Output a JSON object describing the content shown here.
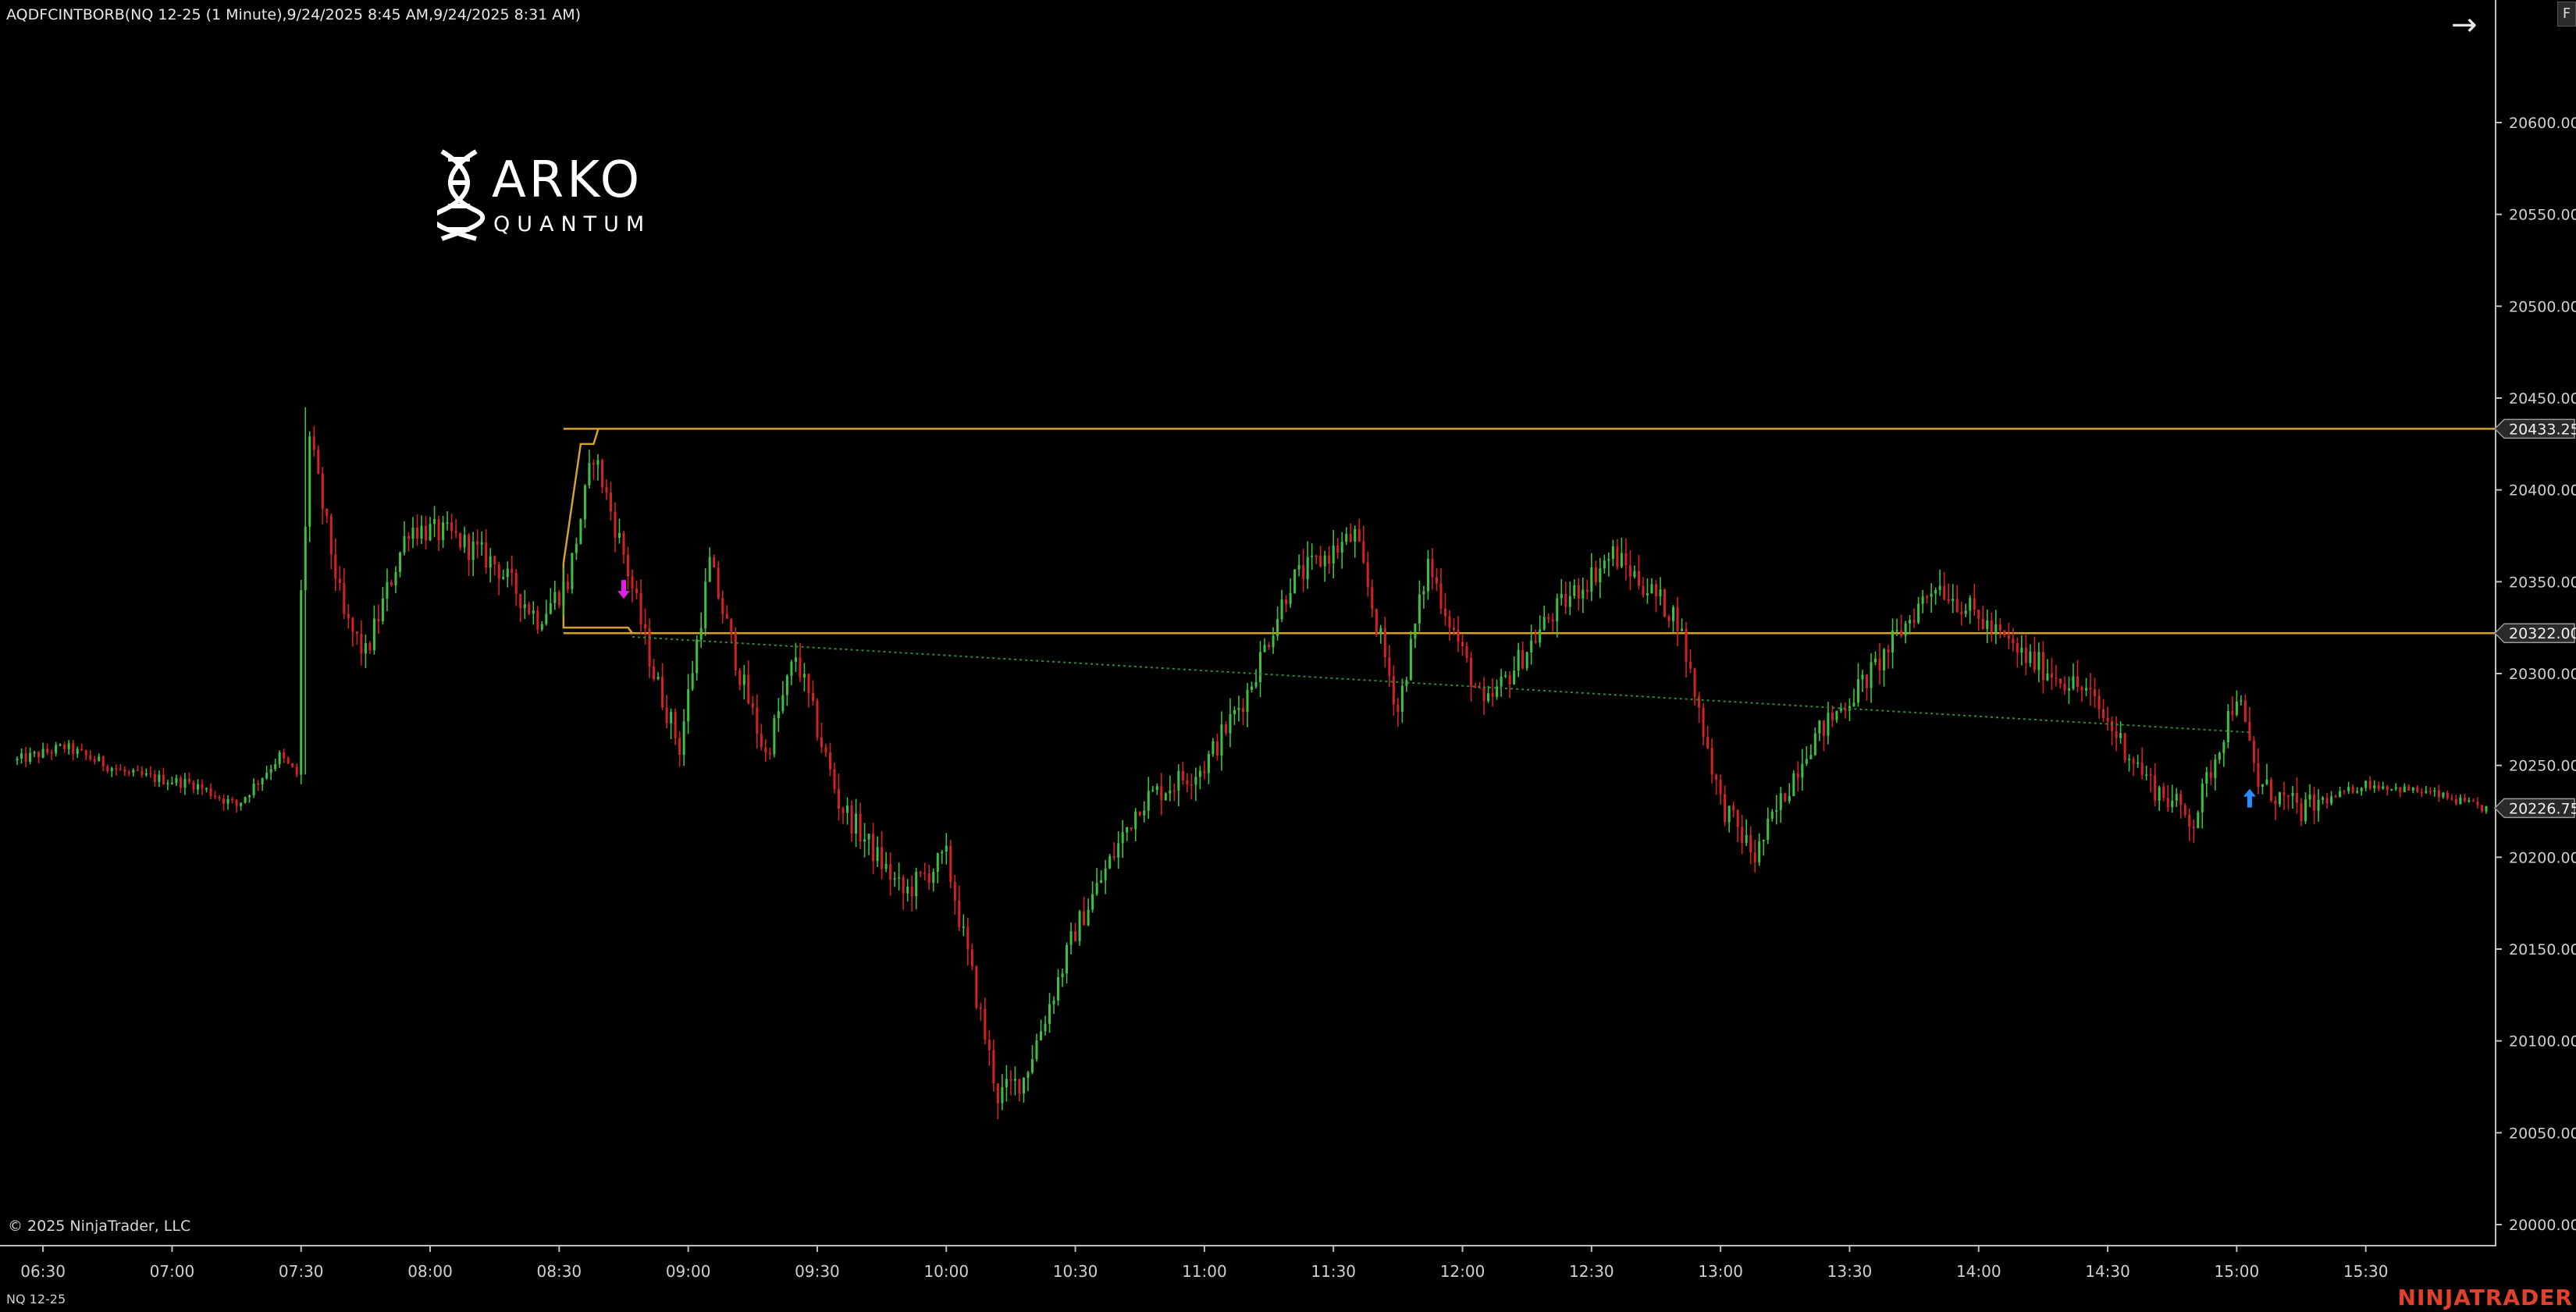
{
  "window": {
    "title": "AQDFCINTBORB(NQ 12-25 (1 Minute),9/24/2025 8:45 AM,9/24/2025 8:31 AM)",
    "f_button_label": "F",
    "collapse_icon": "arrow-right-icon",
    "copyright": "© 2025 NinjaTrader, LLC",
    "instrument": "NQ 12-25",
    "brand": "NINJATRADER",
    "brand_color": "#e0412d"
  },
  "logo": {
    "name": "ARKO",
    "tagline": "QUANTUM",
    "icon": "dna-helix-icon"
  },
  "chart_data": {
    "type": "candlestick",
    "instrument": "NQ 12-25",
    "interval": "1 Minute",
    "title": "AQDFCINTBORB(NQ 12-25 (1 Minute),9/24/2025 8:45 AM,9/24/2025 8:31 AM)",
    "x_ticks": [
      "06:30",
      "07:00",
      "07:30",
      "08:00",
      "08:30",
      "09:00",
      "09:30",
      "10:00",
      "10:30",
      "11:00",
      "11:30",
      "12:00",
      "12:30",
      "13:00",
      "13:30",
      "14:00",
      "14:30",
      "15:00",
      "15:30"
    ],
    "y_ticks": [
      "20600.00",
      "20550.00",
      "20500.00",
      "20450.00",
      "20400.00",
      "20350.00",
      "20300.00",
      "20250.00",
      "20200.00",
      "20150.00",
      "20100.00",
      "20050.00",
      "20000.00"
    ],
    "ylim": [
      20000,
      20600
    ],
    "x_range": [
      "06:20",
      "16:00"
    ],
    "grid": false,
    "up_color": "#3fbf3f",
    "down_color": "#d22222",
    "price_path": [
      {
        "t": "06:20",
        "p": 20250
      },
      {
        "t": "06:35",
        "p": 20260
      },
      {
        "t": "06:50",
        "p": 20245
      },
      {
        "t": "07:05",
        "p": 20240
      },
      {
        "t": "07:15",
        "p": 20228
      },
      {
        "t": "07:25",
        "p": 20255
      },
      {
        "t": "07:29",
        "p": 20245
      },
      {
        "t": "07:31",
        "p": 20440
      },
      {
        "t": "07:40",
        "p": 20330
      },
      {
        "t": "07:45",
        "p": 20310
      },
      {
        "t": "07:55",
        "p": 20380
      },
      {
        "t": "08:05",
        "p": 20375
      },
      {
        "t": "08:15",
        "p": 20360
      },
      {
        "t": "08:25",
        "p": 20330
      },
      {
        "t": "08:32",
        "p": 20350
      },
      {
        "t": "08:38",
        "p": 20420
      },
      {
        "t": "08:45",
        "p": 20365
      },
      {
        "t": "08:52",
        "p": 20300
      },
      {
        "t": "08:58",
        "p": 20260
      },
      {
        "t": "09:05",
        "p": 20360
      },
      {
        "t": "09:12",
        "p": 20300
      },
      {
        "t": "09:18",
        "p": 20255
      },
      {
        "t": "09:25",
        "p": 20310
      },
      {
        "t": "09:35",
        "p": 20230
      },
      {
        "t": "09:50",
        "p": 20180
      },
      {
        "t": "10:00",
        "p": 20200
      },
      {
        "t": "10:12",
        "p": 20070
      },
      {
        "t": "10:18",
        "p": 20080
      },
      {
        "t": "10:30",
        "p": 20160
      },
      {
        "t": "10:45",
        "p": 20230
      },
      {
        "t": "11:00",
        "p": 20250
      },
      {
        "t": "11:10",
        "p": 20290
      },
      {
        "t": "11:20",
        "p": 20350
      },
      {
        "t": "11:35",
        "p": 20375
      },
      {
        "t": "11:45",
        "p": 20280
      },
      {
        "t": "11:52",
        "p": 20360
      },
      {
        "t": "12:05",
        "p": 20280
      },
      {
        "t": "12:20",
        "p": 20330
      },
      {
        "t": "12:35",
        "p": 20365
      },
      {
        "t": "12:50",
        "p": 20330
      },
      {
        "t": "13:00",
        "p": 20230
      },
      {
        "t": "13:08",
        "p": 20200
      },
      {
        "t": "13:20",
        "p": 20260
      },
      {
        "t": "13:35",
        "p": 20300
      },
      {
        "t": "13:50",
        "p": 20350
      },
      {
        "t": "14:00",
        "p": 20330
      },
      {
        "t": "14:10",
        "p": 20310
      },
      {
        "t": "14:25",
        "p": 20290
      },
      {
        "t": "14:40",
        "p": 20240
      },
      {
        "t": "14:50",
        "p": 20220
      },
      {
        "t": "15:00",
        "p": 20290
      },
      {
        "t": "15:05",
        "p": 20240
      },
      {
        "t": "15:15",
        "p": 20225
      },
      {
        "t": "15:30",
        "p": 20240
      },
      {
        "t": "15:45",
        "p": 20235
      },
      {
        "t": "15:57",
        "p": 20226.75
      }
    ],
    "levels": [
      {
        "name": "range-high",
        "price": 20433.25,
        "label": "20433.25",
        "color": "#d4a030",
        "from": "08:31"
      },
      {
        "name": "range-low",
        "price": 20322.0,
        "label": "20322.00",
        "color": "#d4a030",
        "from": "08:31"
      },
      {
        "name": "last-price",
        "price": 20226.75,
        "label": "20226.75",
        "color": "#c8c8c8",
        "from": null
      }
    ],
    "trendline": {
      "color": "#2e8b2e",
      "from": {
        "t": "08:47",
        "p": 20320
      },
      "to": {
        "t": "15:03",
        "p": 20268
      }
    },
    "markers": [
      {
        "type": "short-arrow",
        "t": "08:45",
        "p": 20345,
        "color": "#e020e0"
      },
      {
        "type": "long-arrow",
        "t": "15:03",
        "p": 20233,
        "color": "#2a8cff"
      }
    ]
  }
}
